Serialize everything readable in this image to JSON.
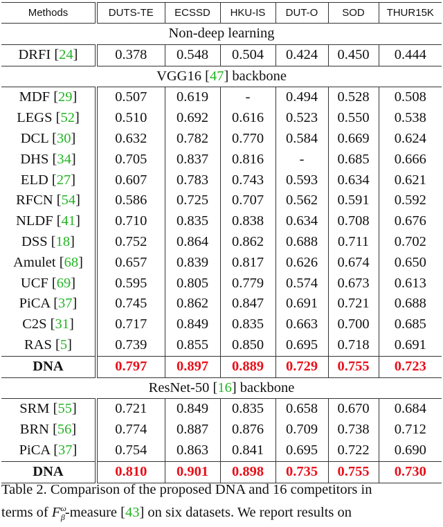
{
  "header": [
    "Methods",
    "DUTS-TE",
    "ECSSD",
    "HKU-IS",
    "DUT-O",
    "SOD",
    "THUR15K"
  ],
  "sections": [
    {
      "title": "Non-deep learning",
      "title_cite": "",
      "title_suffix": "",
      "rows": [
        {
          "method": "DRFI",
          "cite": "24",
          "values": [
            "0.378",
            "0.548",
            "0.504",
            "0.424",
            "0.450",
            "0.444"
          ],
          "ours": false
        }
      ]
    },
    {
      "title": "VGG16 ",
      "title_cite": "47",
      "title_suffix": " backbone",
      "rows": [
        {
          "method": "MDF",
          "cite": "29",
          "values": [
            "0.507",
            "0.619",
            "-",
            "0.494",
            "0.528",
            "0.508"
          ],
          "ours": false
        },
        {
          "method": "LEGS",
          "cite": "52",
          "values": [
            "0.510",
            "0.692",
            "0.616",
            "0.523",
            "0.550",
            "0.538"
          ],
          "ours": false
        },
        {
          "method": "DCL",
          "cite": "30",
          "values": [
            "0.632",
            "0.782",
            "0.770",
            "0.584",
            "0.669",
            "0.624"
          ],
          "ours": false
        },
        {
          "method": "DHS",
          "cite": "34",
          "values": [
            "0.705",
            "0.837",
            "0.816",
            "-",
            "0.685",
            "0.666"
          ],
          "ours": false
        },
        {
          "method": "ELD",
          "cite": "27",
          "values": [
            "0.607",
            "0.783",
            "0.743",
            "0.593",
            "0.634",
            "0.621"
          ],
          "ours": false
        },
        {
          "method": "RFCN",
          "cite": "54",
          "values": [
            "0.586",
            "0.725",
            "0.707",
            "0.562",
            "0.591",
            "0.592"
          ],
          "ours": false
        },
        {
          "method": "NLDF",
          "cite": "41",
          "values": [
            "0.710",
            "0.835",
            "0.838",
            "0.634",
            "0.708",
            "0.676"
          ],
          "ours": false
        },
        {
          "method": "DSS",
          "cite": "18",
          "values": [
            "0.752",
            "0.864",
            "0.862",
            "0.688",
            "0.711",
            "0.702"
          ],
          "ours": false
        },
        {
          "method": "Amulet",
          "cite": "68",
          "values": [
            "0.657",
            "0.839",
            "0.817",
            "0.626",
            "0.674",
            "0.650"
          ],
          "ours": false
        },
        {
          "method": "UCF",
          "cite": "69",
          "values": [
            "0.595",
            "0.805",
            "0.779",
            "0.574",
            "0.673",
            "0.613"
          ],
          "ours": false
        },
        {
          "method": "PiCA",
          "cite": "37",
          "values": [
            "0.745",
            "0.862",
            "0.847",
            "0.691",
            "0.721",
            "0.688"
          ],
          "ours": false
        },
        {
          "method": "C2S",
          "cite": "31",
          "values": [
            "0.717",
            "0.849",
            "0.835",
            "0.663",
            "0.700",
            "0.685"
          ],
          "ours": false
        },
        {
          "method": "RAS",
          "cite": "5",
          "values": [
            "0.739",
            "0.855",
            "0.850",
            "0.695",
            "0.718",
            "0.691"
          ],
          "ours": false
        },
        {
          "method": "DNA",
          "cite": "",
          "values": [
            "0.797",
            "0.897",
            "0.889",
            "0.729",
            "0.755",
            "0.723"
          ],
          "ours": true
        }
      ]
    },
    {
      "title": "ResNet-50 ",
      "title_cite": "16",
      "title_suffix": " backbone",
      "rows": [
        {
          "method": "SRM",
          "cite": "55",
          "values": [
            "0.721",
            "0.849",
            "0.835",
            "0.658",
            "0.670",
            "0.684"
          ],
          "ours": false
        },
        {
          "method": "BRN",
          "cite": "56",
          "values": [
            "0.774",
            "0.887",
            "0.876",
            "0.709",
            "0.738",
            "0.712"
          ],
          "ours": false
        },
        {
          "method": "PiCA",
          "cite": "37",
          "values": [
            "0.754",
            "0.863",
            "0.841",
            "0.695",
            "0.722",
            "0.690"
          ],
          "ours": false
        },
        {
          "method": "DNA",
          "cite": "",
          "values": [
            "0.810",
            "0.901",
            "0.898",
            "0.735",
            "0.755",
            "0.730"
          ],
          "ours": true
        }
      ]
    }
  ],
  "caption": {
    "line1": "Table 2. Comparison of the proposed DNA and 16 competitors in",
    "line2_prefix": "terms of ",
    "measure_symbol": "F",
    "measure_sup": "ω",
    "measure_sub": "β",
    "line2_mid": "-measure [",
    "line2_cite": "43",
    "line2_suffix": "] on six datasets.  We report results on"
  },
  "colors": {
    "best": "#e8101a",
    "cite": "#22b422",
    "text": "#111111"
  }
}
